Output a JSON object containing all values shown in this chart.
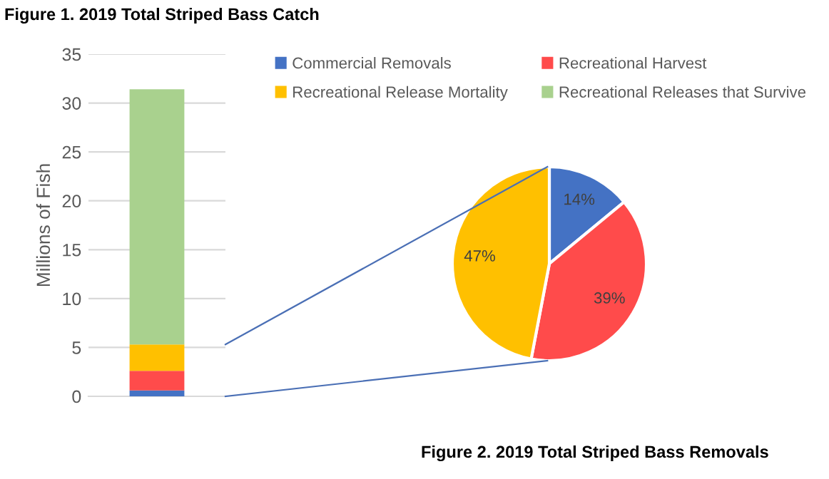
{
  "chart_data": [
    {
      "type": "bar",
      "title": "Figure 1. 2019 Total Striped Bass Catch",
      "ylabel": "Millions of Fish",
      "categories": [
        null
      ],
      "stacked": true,
      "series": [
        {
          "name": "Commercial Removals",
          "color": "#4472c4",
          "values": [
            0.6
          ]
        },
        {
          "name": "Recreational Harvest",
          "color": "#ff4b4b",
          "values": [
            2.0
          ]
        },
        {
          "name": "Recreational Release Mortality",
          "color": "#ffc000",
          "values": [
            2.7
          ]
        },
        {
          "name": "Recreational Releases that Survive",
          "color": "#a9d18e",
          "values": [
            26.1
          ]
        }
      ],
      "ylim": [
        0,
        35
      ],
      "yticks": [
        0,
        5,
        10,
        15,
        20,
        25,
        30,
        35
      ],
      "grid": "y",
      "legend": "top right"
    },
    {
      "type": "pie",
      "title": "Figure 2. 2019 Total Striped Bass Removals",
      "categories": [
        null,
        null,
        null
      ],
      "values": [
        14,
        39,
        47
      ],
      "colors": [
        "#4472c4",
        "#ff4b4b",
        "#ffc000"
      ],
      "value_labels": [
        "14%",
        "39%",
        "47%"
      ]
    }
  ]
}
